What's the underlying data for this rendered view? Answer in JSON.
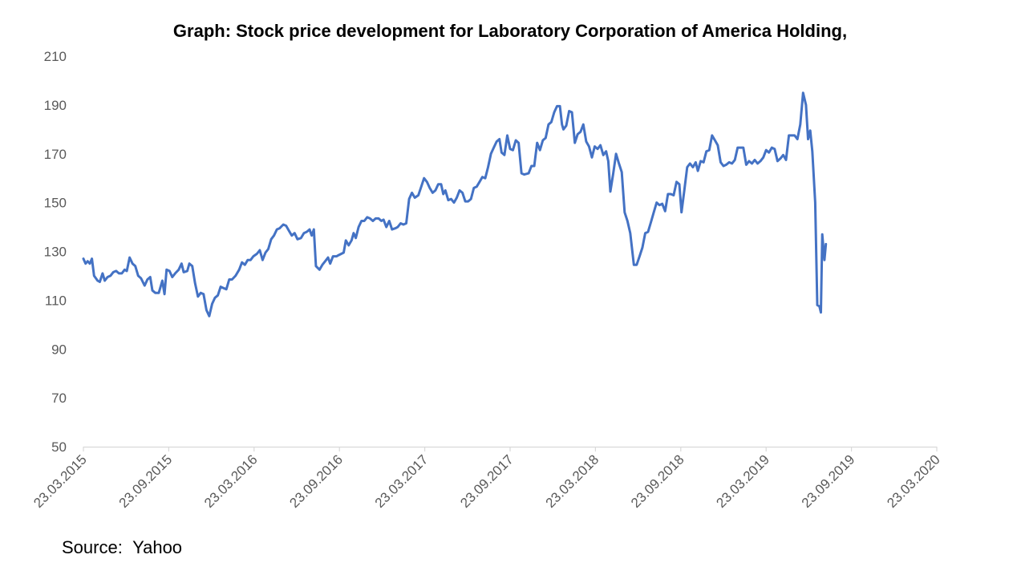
{
  "chart_data": {
    "type": "line",
    "title": "Graph: Stock price development for Laboratory Corporation of America Holding,",
    "xlabel": "",
    "ylabel": "",
    "ylim": [
      50,
      210
    ],
    "yticks": [
      50,
      70,
      90,
      110,
      130,
      150,
      170,
      190,
      210
    ],
    "xticks": [
      "23.03.2015",
      "23.09.2015",
      "23.03.2016",
      "23.09.2016",
      "23.03.2017",
      "23.09.2017",
      "23.03.2018",
      "23.09.2018",
      "23.03.2019",
      "23.09.2019",
      "23.03.2020"
    ],
    "grid": false,
    "legend": "none",
    "line_color": "#4472C4",
    "x_unit": "months since 23.03.2015",
    "series": [
      {
        "name": "Laboratory Corporation of America Holding",
        "points": [
          [
            0.0,
            127
          ],
          [
            0.15,
            125
          ],
          [
            0.3,
            126
          ],
          [
            0.45,
            125
          ],
          [
            0.6,
            127
          ],
          [
            0.75,
            120
          ],
          [
            1.0,
            118
          ],
          [
            1.15,
            117.5
          ],
          [
            1.35,
            121
          ],
          [
            1.5,
            118
          ],
          [
            1.7,
            119.5
          ],
          [
            1.9,
            120
          ],
          [
            2.1,
            121.5
          ],
          [
            2.3,
            122
          ],
          [
            2.5,
            121
          ],
          [
            2.7,
            121
          ],
          [
            2.9,
            122.5
          ],
          [
            3.05,
            122
          ],
          [
            3.25,
            127.5
          ],
          [
            3.45,
            125
          ],
          [
            3.65,
            124
          ],
          [
            3.85,
            120
          ],
          [
            4.05,
            119
          ],
          [
            4.3,
            116
          ],
          [
            4.5,
            118.5
          ],
          [
            4.7,
            119.5
          ],
          [
            4.85,
            114
          ],
          [
            5.05,
            113
          ],
          [
            5.3,
            113
          ],
          [
            5.55,
            118
          ],
          [
            5.7,
            112.5
          ],
          [
            5.85,
            122.5
          ],
          [
            6.05,
            122
          ],
          [
            6.25,
            119.5
          ],
          [
            6.45,
            121
          ],
          [
            6.7,
            122.5
          ],
          [
            6.9,
            125
          ],
          [
            7.05,
            121.5
          ],
          [
            7.3,
            122
          ],
          [
            7.45,
            125
          ],
          [
            7.65,
            124
          ],
          [
            7.85,
            117
          ],
          [
            8.05,
            111.5
          ],
          [
            8.25,
            113
          ],
          [
            8.45,
            112.5
          ],
          [
            8.65,
            106
          ],
          [
            8.85,
            103.5
          ],
          [
            9.05,
            108.5
          ],
          [
            9.25,
            111
          ],
          [
            9.45,
            112
          ],
          [
            9.65,
            115.5
          ],
          [
            9.85,
            115
          ],
          [
            10.05,
            114.5
          ],
          [
            10.25,
            118.5
          ],
          [
            10.45,
            118.5
          ],
          [
            10.7,
            120
          ],
          [
            10.95,
            122.5
          ],
          [
            11.15,
            125.5
          ],
          [
            11.35,
            124.5
          ],
          [
            11.55,
            126.5
          ],
          [
            11.75,
            126.5
          ],
          [
            11.95,
            128
          ],
          [
            12.2,
            129
          ],
          [
            12.4,
            130.5
          ],
          [
            12.6,
            126.5
          ],
          [
            12.8,
            129.5
          ],
          [
            13.0,
            131
          ],
          [
            13.2,
            135
          ],
          [
            13.4,
            136.5
          ],
          [
            13.6,
            139
          ],
          [
            13.8,
            139.5
          ],
          [
            14.05,
            141
          ],
          [
            14.25,
            140.5
          ],
          [
            14.45,
            138.5
          ],
          [
            14.65,
            136.5
          ],
          [
            14.85,
            137.5
          ],
          [
            15.05,
            135
          ],
          [
            15.3,
            135.5
          ],
          [
            15.5,
            137.5
          ],
          [
            15.7,
            138
          ],
          [
            15.9,
            139
          ],
          [
            16.05,
            136.5
          ],
          [
            16.2,
            139
          ],
          [
            16.35,
            124
          ],
          [
            16.6,
            122.5
          ],
          [
            16.8,
            124.5
          ],
          [
            17.0,
            126
          ],
          [
            17.2,
            127.5
          ],
          [
            17.35,
            125
          ],
          [
            17.55,
            128
          ],
          [
            17.8,
            128
          ],
          [
            17.95,
            128.5
          ],
          [
            18.3,
            129.5
          ],
          [
            18.45,
            134.5
          ],
          [
            18.65,
            132.5
          ],
          [
            18.85,
            134.5
          ],
          [
            19.0,
            137.5
          ],
          [
            19.15,
            135.5
          ],
          [
            19.35,
            140
          ],
          [
            19.55,
            142.5
          ],
          [
            19.75,
            142.5
          ],
          [
            19.95,
            144
          ],
          [
            20.15,
            143.5
          ],
          [
            20.35,
            142.5
          ],
          [
            20.55,
            143.5
          ],
          [
            20.75,
            143.5
          ],
          [
            20.95,
            142.5
          ],
          [
            21.1,
            143
          ],
          [
            21.3,
            140
          ],
          [
            21.5,
            142.5
          ],
          [
            21.7,
            139
          ],
          [
            21.95,
            139.5
          ],
          [
            22.1,
            140
          ],
          [
            22.3,
            141.5
          ],
          [
            22.5,
            141
          ],
          [
            22.7,
            141.5
          ],
          [
            22.9,
            151.5
          ],
          [
            23.1,
            154
          ],
          [
            23.3,
            152
          ],
          [
            23.55,
            153
          ],
          [
            23.75,
            156.5
          ],
          [
            23.95,
            160
          ],
          [
            24.15,
            158.5
          ],
          [
            24.35,
            156
          ],
          [
            24.55,
            154
          ],
          [
            24.75,
            155
          ],
          [
            24.95,
            157.5
          ],
          [
            25.15,
            157.5
          ],
          [
            25.3,
            153.5
          ],
          [
            25.45,
            155
          ],
          [
            25.65,
            151
          ],
          [
            25.85,
            151.5
          ],
          [
            26.05,
            150
          ],
          [
            26.25,
            152
          ],
          [
            26.45,
            155
          ],
          [
            26.65,
            154
          ],
          [
            26.85,
            150.5
          ],
          [
            27.05,
            150.5
          ],
          [
            27.25,
            151.5
          ],
          [
            27.45,
            156
          ],
          [
            27.65,
            156.5
          ],
          [
            27.85,
            158.5
          ],
          [
            28.05,
            160.5
          ],
          [
            28.25,
            160
          ],
          [
            28.45,
            164.5
          ],
          [
            28.65,
            170
          ],
          [
            28.85,
            172.5
          ],
          [
            29.05,
            175
          ],
          [
            29.25,
            176
          ],
          [
            29.4,
            170.5
          ],
          [
            29.6,
            169.5
          ],
          [
            29.8,
            177.5
          ],
          [
            30.0,
            172
          ],
          [
            30.2,
            171.5
          ],
          [
            30.4,
            175.5
          ],
          [
            30.6,
            174.5
          ],
          [
            30.8,
            162
          ],
          [
            31.0,
            161.5
          ],
          [
            31.3,
            162
          ],
          [
            31.5,
            165
          ],
          [
            31.7,
            165
          ],
          [
            31.9,
            174.5
          ],
          [
            32.1,
            171.5
          ],
          [
            32.3,
            175.5
          ],
          [
            32.5,
            176.5
          ],
          [
            32.7,
            182
          ],
          [
            32.9,
            183
          ],
          [
            33.1,
            187
          ],
          [
            33.3,
            189.5
          ],
          [
            33.5,
            189.5
          ],
          [
            33.65,
            182
          ],
          [
            33.75,
            180
          ],
          [
            33.95,
            181.5
          ],
          [
            34.15,
            187.5
          ],
          [
            34.35,
            187
          ],
          [
            34.55,
            174.5
          ],
          [
            34.75,
            178
          ],
          [
            34.95,
            179
          ],
          [
            35.15,
            182
          ],
          [
            35.35,
            175
          ],
          [
            35.55,
            173
          ],
          [
            35.75,
            168.5
          ],
          [
            35.95,
            173
          ],
          [
            36.15,
            172
          ],
          [
            36.35,
            173.5
          ],
          [
            36.55,
            169.5
          ],
          [
            36.75,
            171
          ],
          [
            36.9,
            167
          ],
          [
            37.05,
            154.5
          ],
          [
            37.25,
            162
          ],
          [
            37.45,
            170
          ],
          [
            37.65,
            166
          ],
          [
            37.85,
            162.5
          ],
          [
            38.05,
            146
          ],
          [
            38.25,
            142.5
          ],
          [
            38.45,
            137.5
          ],
          [
            38.7,
            124.5
          ],
          [
            38.9,
            124.5
          ],
          [
            39.1,
            128
          ],
          [
            39.3,
            131.5
          ],
          [
            39.5,
            137.5
          ],
          [
            39.7,
            138
          ],
          [
            39.9,
            142
          ],
          [
            40.1,
            146
          ],
          [
            40.3,
            150
          ],
          [
            40.5,
            149
          ],
          [
            40.7,
            149.5
          ],
          [
            40.9,
            146.5
          ],
          [
            41.1,
            153.5
          ],
          [
            41.3,
            153.5
          ],
          [
            41.5,
            153
          ],
          [
            41.7,
            158.5
          ],
          [
            41.9,
            157.5
          ],
          [
            42.05,
            146
          ],
          [
            42.25,
            155
          ],
          [
            42.45,
            164.5
          ],
          [
            42.65,
            166
          ],
          [
            42.85,
            164.5
          ],
          [
            43.05,
            166.5
          ],
          [
            43.2,
            163
          ],
          [
            43.4,
            167
          ],
          [
            43.6,
            166.5
          ],
          [
            43.8,
            171
          ],
          [
            44.0,
            171.5
          ],
          [
            44.2,
            177.5
          ],
          [
            44.4,
            175.5
          ],
          [
            44.6,
            173.5
          ],
          [
            44.8,
            166.5
          ],
          [
            45.0,
            165
          ],
          [
            45.2,
            165.5
          ],
          [
            45.4,
            166.5
          ],
          [
            45.6,
            166
          ],
          [
            45.8,
            167.5
          ],
          [
            46.0,
            172.5
          ],
          [
            46.2,
            172.5
          ],
          [
            46.4,
            172.5
          ],
          [
            46.6,
            165.5
          ],
          [
            46.8,
            167
          ],
          [
            47.0,
            166
          ],
          [
            47.2,
            167.5
          ],
          [
            47.4,
            166
          ],
          [
            47.6,
            167
          ],
          [
            47.8,
            168.5
          ],
          [
            48.0,
            171.5
          ],
          [
            48.2,
            170.5
          ],
          [
            48.4,
            172.5
          ],
          [
            48.6,
            172
          ],
          [
            48.8,
            167
          ],
          [
            49.0,
            168
          ],
          [
            49.2,
            169.5
          ],
          [
            49.4,
            167.5
          ],
          [
            49.6,
            177.5
          ],
          [
            49.8,
            177.5
          ],
          [
            50.0,
            177.5
          ],
          [
            50.2,
            176
          ],
          [
            50.4,
            182
          ],
          [
            50.6,
            195
          ],
          [
            50.8,
            190
          ],
          [
            50.95,
            176
          ],
          [
            51.1,
            179.5
          ],
          [
            51.25,
            171
          ],
          [
            51.45,
            150
          ],
          [
            51.6,
            108
          ],
          [
            51.75,
            107.5
          ],
          [
            51.85,
            105
          ],
          [
            51.95,
            137
          ],
          [
            52.1,
            126.5
          ],
          [
            52.2,
            133
          ]
        ]
      }
    ]
  },
  "source": {
    "label": "Source:",
    "value": "Yahoo"
  }
}
